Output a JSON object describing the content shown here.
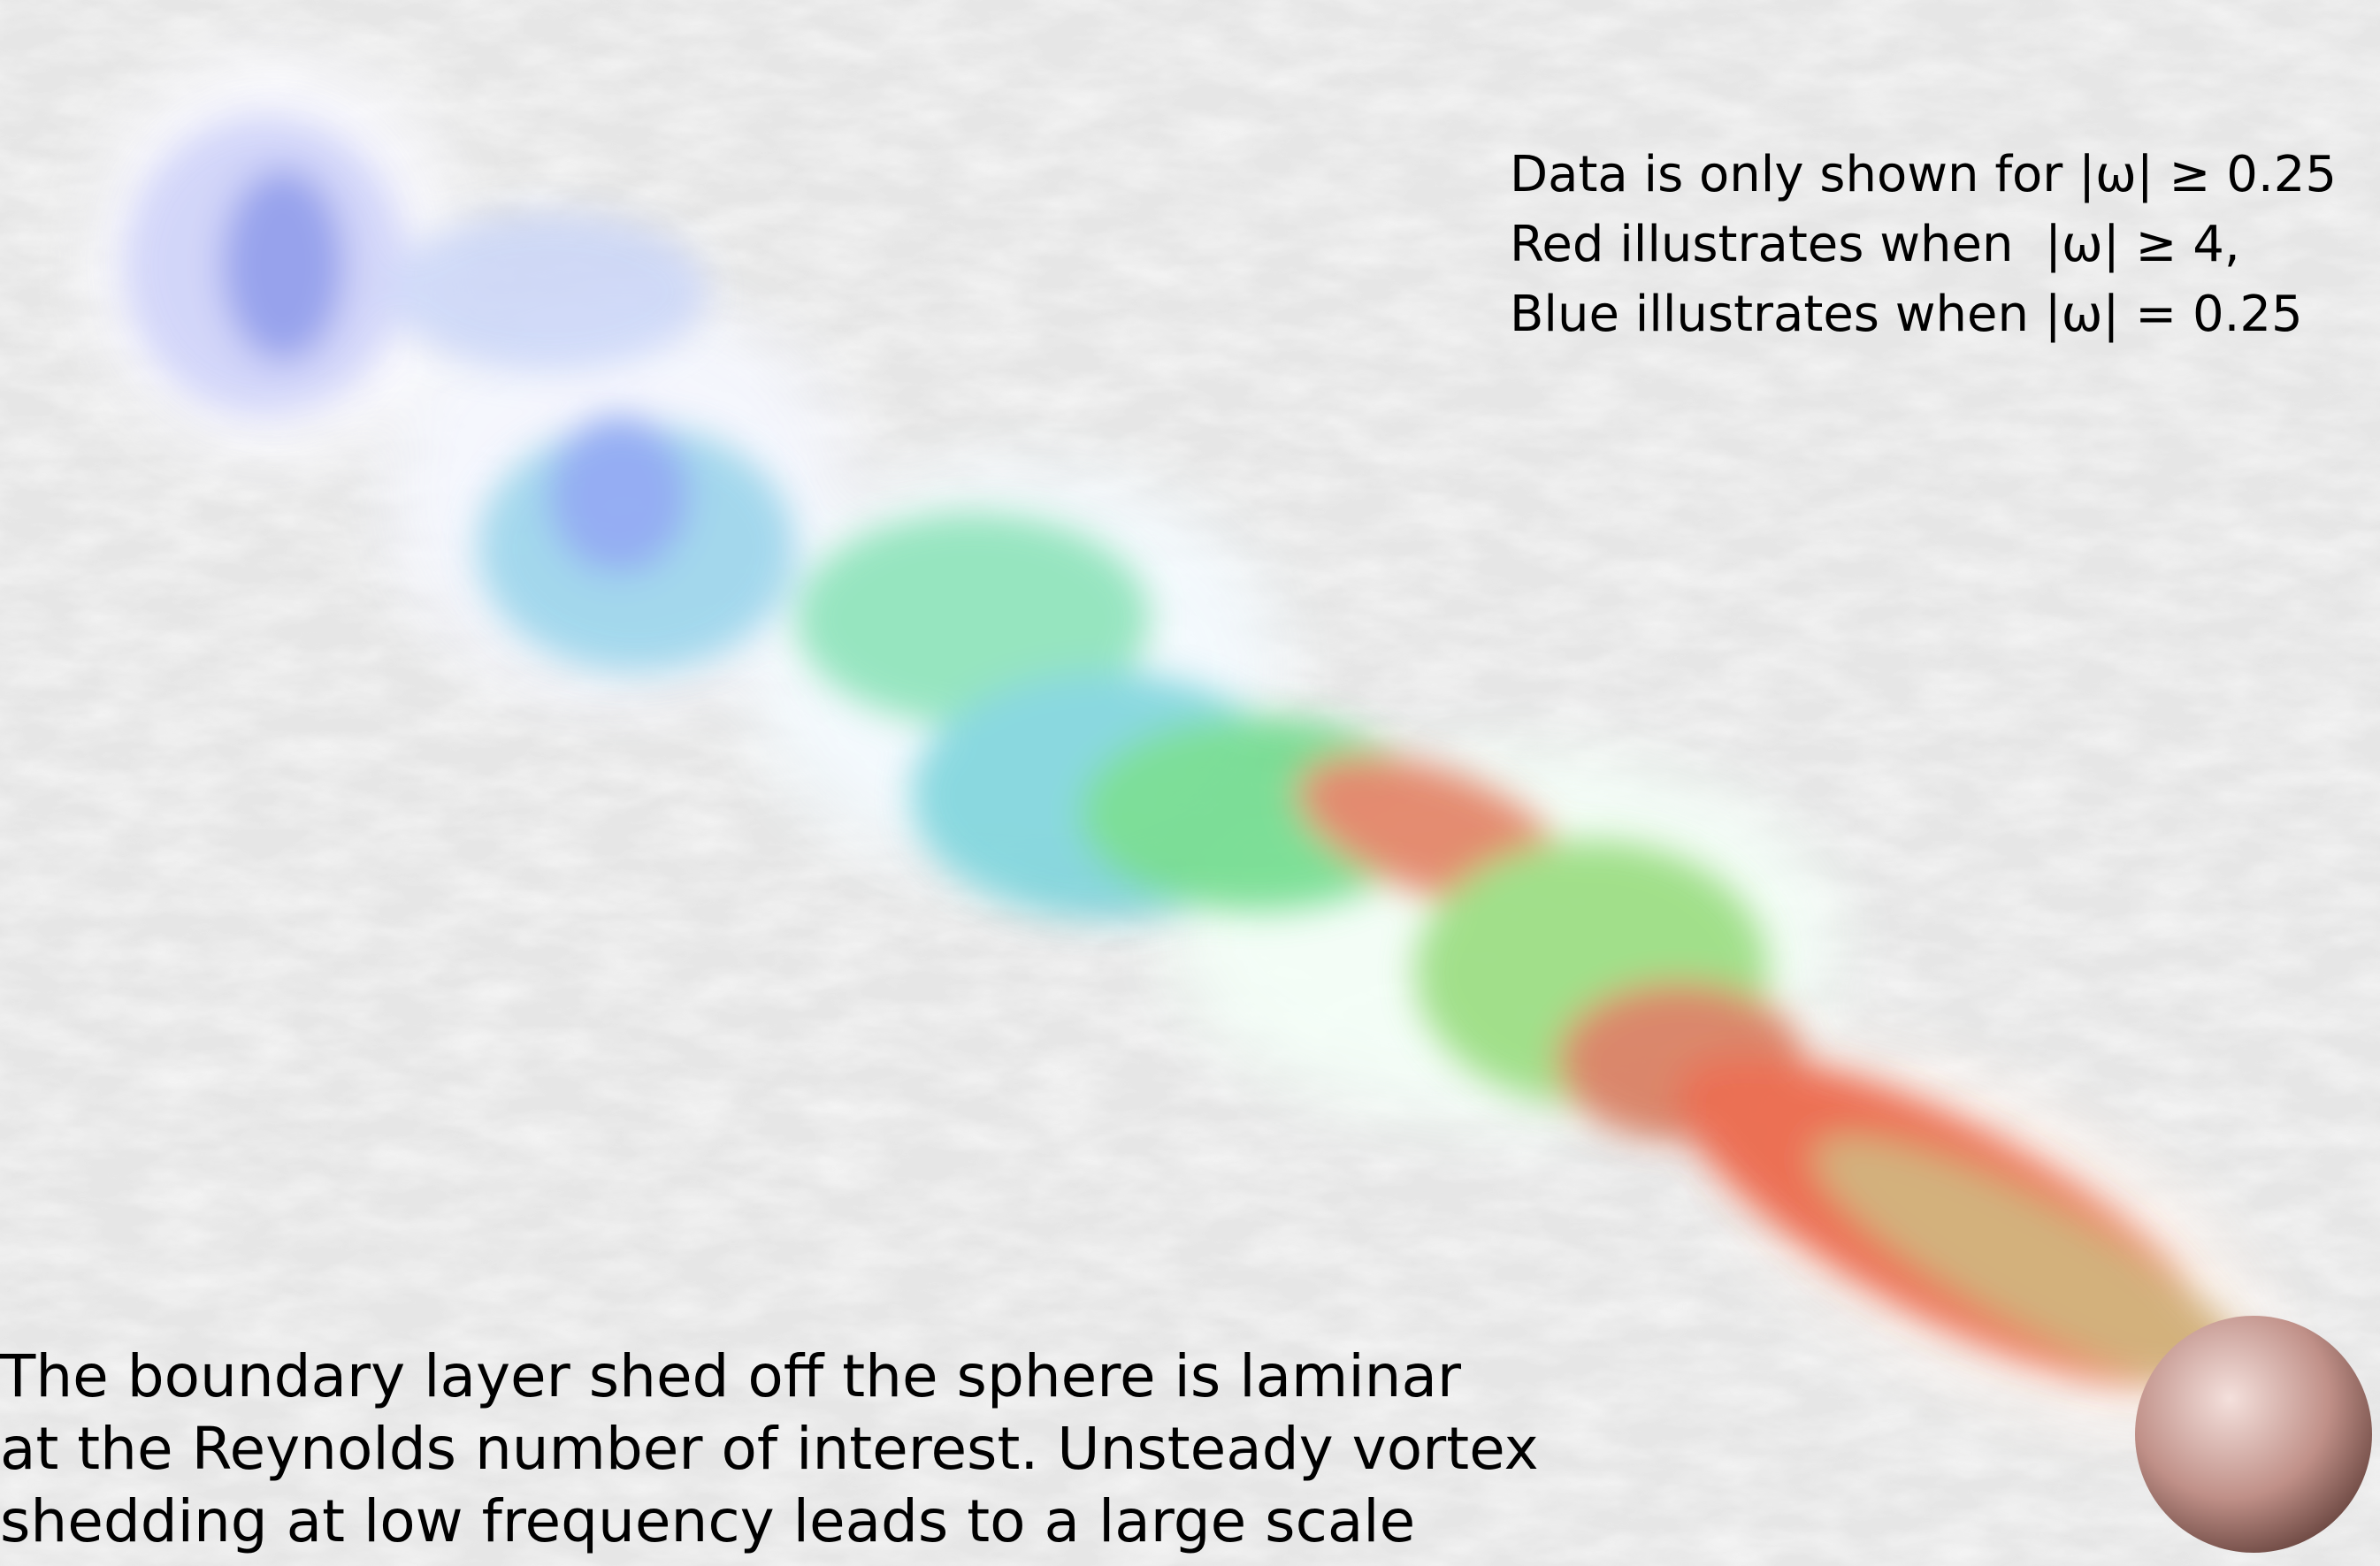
{
  "legend_note": {
    "lines": [
      "Data is only shown for |ω| ≥ 0.25",
      "Red illustrates when  |ω| ≥ 4,",
      "Blue illustrates when |ω| = 0.25"
    ]
  },
  "caption": {
    "lines": [
      "The boundary layer shed off the sphere is laminar",
      "at the Reynolds number of interest. Unsteady vortex",
      "shedding at low frequency leads to a large scale"
    ]
  }
}
